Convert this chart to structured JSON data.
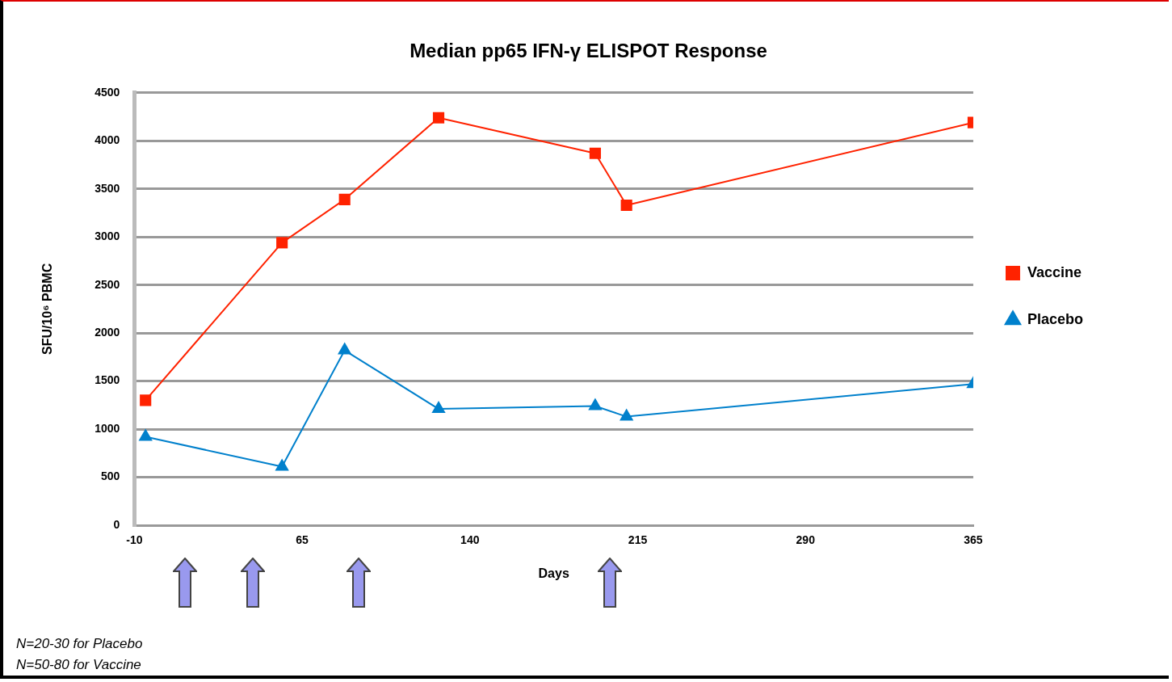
{
  "chart_data": {
    "type": "line",
    "title": "Median pp65 IFN-γ ELISPOT Response",
    "xlabel": "Days",
    "ylabel": "SFU/10⁶ PBMC",
    "x": [
      -5,
      56,
      84,
      126,
      196,
      210,
      365
    ],
    "series": [
      {
        "name": "Vaccine",
        "color": "#ff2200",
        "marker": "square",
        "values": [
          1300,
          2940,
          3390,
          4240,
          3870,
          3330,
          4190
        ]
      },
      {
        "name": "Placebo",
        "color": "#0080cc",
        "marker": "triangle",
        "values": [
          920,
          610,
          1820,
          1210,
          1240,
          1130,
          1470
        ]
      }
    ],
    "xlim": [
      -10,
      365
    ],
    "xticks": [
      -10,
      65,
      140,
      215,
      290,
      365
    ],
    "ylim": [
      0,
      4500
    ],
    "yticks": [
      0,
      500,
      1000,
      1500,
      2000,
      2500,
      3000,
      3500,
      4000,
      4500
    ],
    "grid": "y",
    "legend": "right",
    "line_style": "solid",
    "annotations": [
      "N=20-30 for Placebo",
      "N=50-80 for Vaccine"
    ]
  }
}
